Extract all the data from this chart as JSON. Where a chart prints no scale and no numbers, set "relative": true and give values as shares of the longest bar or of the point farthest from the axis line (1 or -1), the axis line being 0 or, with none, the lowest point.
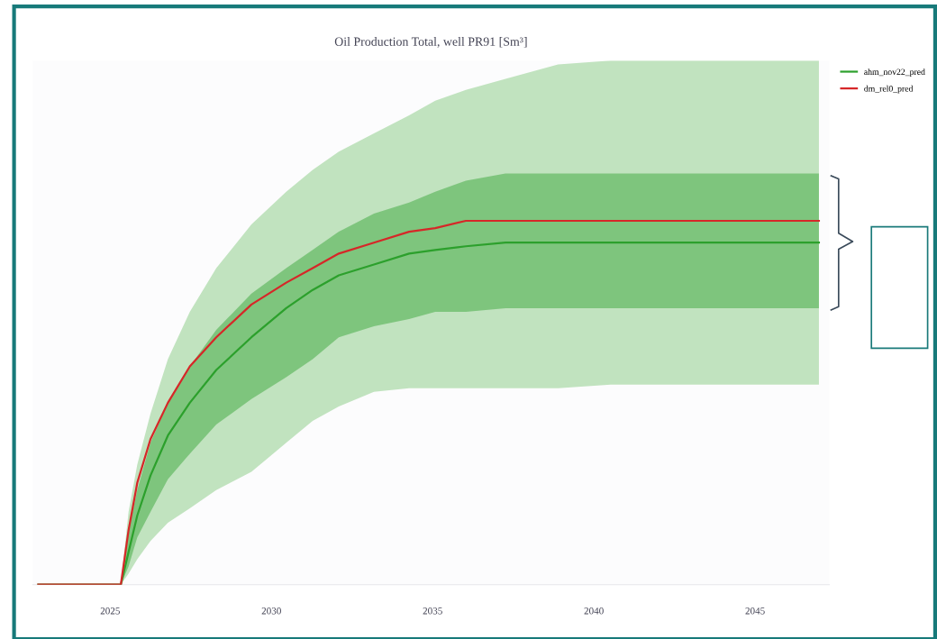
{
  "chart_data": {
    "type": "line",
    "title": "Oil Production Total, well PR91 [Sm³]",
    "relative": true,
    "x": [
      2022.77,
      2025.33,
      2025.57,
      2025.84,
      2026.25,
      2026.79,
      2027.47,
      2028.29,
      2029.38,
      2030.46,
      2031.28,
      2032.09,
      2033.18,
      2034.27,
      2035.08,
      2036.03,
      2037.26,
      2038.89,
      2040.52,
      2046.98
    ],
    "xlim": [
      2022.6,
      2047.3
    ],
    "xticks": [
      2025,
      2030,
      2035,
      2040,
      2045
    ],
    "series": [
      {
        "color": "#c1e3bf",
        "values": [
          null,
          null,
          null,
          null,
          null,
          null,
          null,
          null,
          null,
          null,
          null,
          null,
          null,
          null,
          null,
          null,
          null,
          null,
          null,
          null
        ],
        "lower": [
          0,
          0,
          0.03,
          0.07,
          0.12,
          0.17,
          0.21,
          0.26,
          0.31,
          0.39,
          0.45,
          0.49,
          0.53,
          0.54,
          0.54,
          0.54,
          0.54,
          0.54,
          0.55,
          0.55
        ],
        "upper": [
          0,
          0,
          0.2,
          0.33,
          0.47,
          0.62,
          0.75,
          0.87,
          0.99,
          1.08,
          1.14,
          1.19,
          1.24,
          1.29,
          1.33,
          1.36,
          1.39,
          1.43,
          1.44,
          1.44
        ]
      },
      {
        "name": "ahm_nov22_pred",
        "color": "#2ca02c",
        "values": [
          0,
          0,
          0.09,
          0.19,
          0.3,
          0.41,
          0.5,
          0.59,
          0.68,
          0.76,
          0.81,
          0.85,
          0.88,
          0.91,
          0.92,
          0.93,
          0.94,
          0.94,
          0.94,
          0.94
        ],
        "lower": [
          0,
          0,
          0.05,
          0.13,
          0.2,
          0.29,
          0.36,
          0.44,
          0.51,
          0.57,
          0.62,
          0.68,
          0.71,
          0.73,
          0.75,
          0.75,
          0.76,
          0.76,
          0.76,
          0.76
        ],
        "upper": [
          0,
          0,
          0.15,
          0.26,
          0.39,
          0.5,
          0.6,
          0.7,
          0.8,
          0.87,
          0.92,
          0.97,
          1.02,
          1.05,
          1.08,
          1.11,
          1.13,
          1.13,
          1.13,
          1.13
        ]
      },
      {
        "name": "dm_rel0_pred",
        "color": "#d62728",
        "values": [
          0,
          0,
          0.15,
          0.28,
          0.4,
          0.5,
          0.6,
          0.68,
          0.77,
          0.83,
          0.87,
          0.91,
          0.94,
          0.97,
          0.98,
          1,
          1,
          1,
          1,
          1
        ]
      }
    ],
    "grid": false,
    "legend": "top right"
  }
}
